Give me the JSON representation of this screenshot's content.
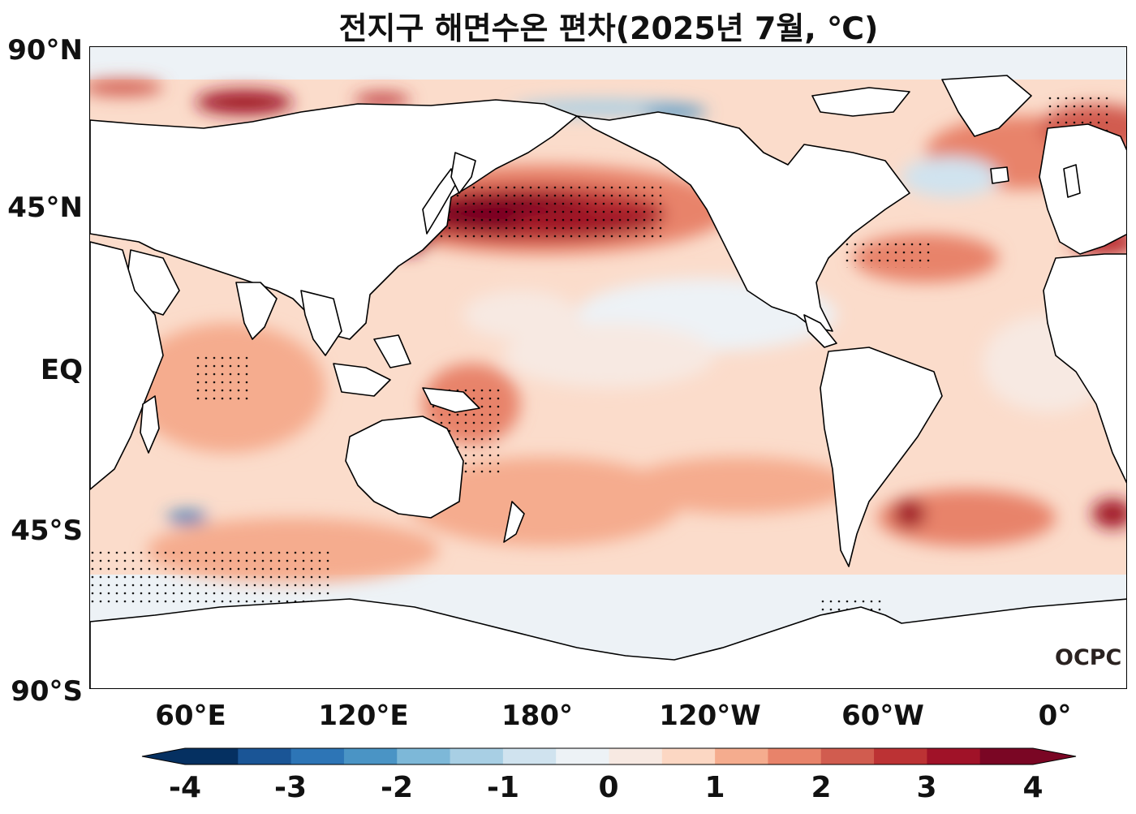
{
  "title": "전지구 해면수온 편차(2025년 7월, ℃)",
  "latitude_labels": [
    "90°N",
    "45°N",
    "EQ",
    "45°S",
    "90°S"
  ],
  "longitude_labels": [
    "60°E",
    "120°E",
    "180°",
    "120°W",
    "60°W",
    "0°"
  ],
  "colorbar": {
    "ticks": [
      "-4",
      "-3",
      "-2",
      "-1",
      "0",
      "1",
      "2",
      "3",
      "4"
    ],
    "range": [
      -4,
      4
    ],
    "colors": [
      "#053061",
      "#1a5596",
      "#2d75b6",
      "#4a94c5",
      "#7db8d8",
      "#a8cfe4",
      "#d0e3ef",
      "#edf2f6",
      "#f7e9e2",
      "#fcd7c3",
      "#f5ac8e",
      "#e8836a",
      "#d15c4f",
      "#bc3234",
      "#a01228",
      "#7a0624"
    ]
  },
  "logo": "OCPC",
  "map": {
    "projection": "equirectangular",
    "central_longitude": "Pacific",
    "dots_meaning": "significance stippling"
  }
}
